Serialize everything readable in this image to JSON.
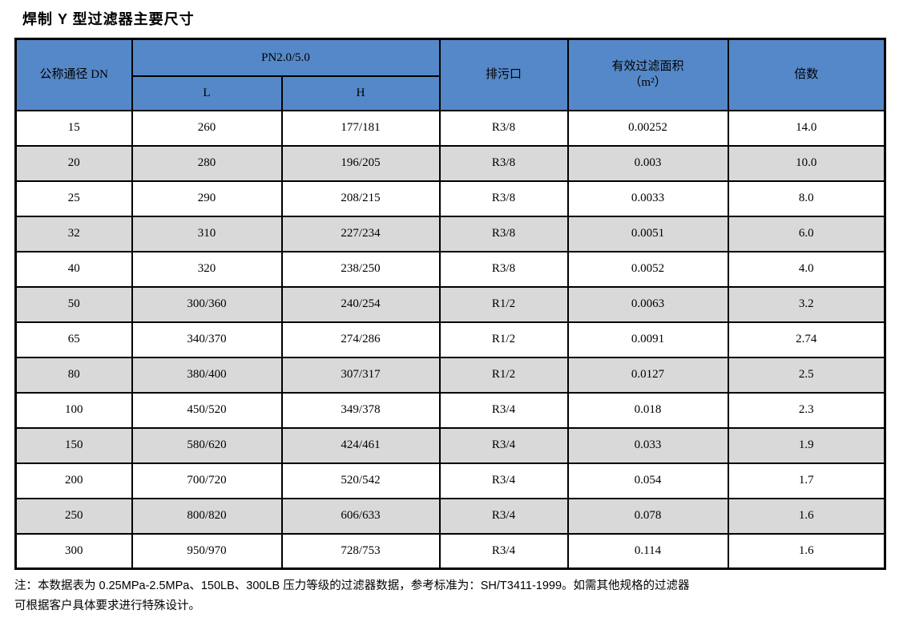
{
  "title": "焊制 Y 型过滤器主要尺寸",
  "table": {
    "header": {
      "col_dn": "公称通径 DN",
      "pn_group": "PN2.0/5.0",
      "col_l": "L",
      "col_h": "H",
      "col_drain": "排污口",
      "col_area_line1": "有效过滤面积",
      "col_area_line2": "（m²）",
      "col_ratio": "倍数"
    },
    "rows": [
      [
        "15",
        "260",
        "177/181",
        "R3/8",
        "0.00252",
        "14.0"
      ],
      [
        "20",
        "280",
        "196/205",
        "R3/8",
        "0.003",
        "10.0"
      ],
      [
        "25",
        "290",
        "208/215",
        "R3/8",
        "0.0033",
        "8.0"
      ],
      [
        "32",
        "310",
        "227/234",
        "R3/8",
        "0.0051",
        "6.0"
      ],
      [
        "40",
        "320",
        "238/250",
        "R3/8",
        "0.0052",
        "4.0"
      ],
      [
        "50",
        "300/360",
        "240/254",
        "R1/2",
        "0.0063",
        "3.2"
      ],
      [
        "65",
        "340/370",
        "274/286",
        "R1/2",
        "0.0091",
        "2.74"
      ],
      [
        "80",
        "380/400",
        "307/317",
        "R1/2",
        "0.0127",
        "2.5"
      ],
      [
        "100",
        "450/520",
        "349/378",
        "R3/4",
        "0.018",
        "2.3"
      ],
      [
        "150",
        "580/620",
        "424/461",
        "R3/4",
        "0.033",
        "1.9"
      ],
      [
        "200",
        "700/720",
        "520/542",
        "R3/4",
        "0.054",
        "1.7"
      ],
      [
        "250",
        "800/820",
        "606/633",
        "R3/4",
        "0.078",
        "1.6"
      ],
      [
        "300",
        "950/970",
        "728/753",
        "R3/4",
        "0.114",
        "1.6"
      ]
    ]
  },
  "note": {
    "line1": "注：本数据表为 0.25MPa-2.5MPa、150LB、300LB 压力等级的过滤器数据，参考标准为：SH/T3411-1999。如需其他规格的过滤器",
    "line2": "可根据客户具体要求进行特殊设计。"
  },
  "colors": {
    "header_blue": "#5588C8",
    "row_alt_gray": "#D9D9D9",
    "border_black": "#000000"
  }
}
